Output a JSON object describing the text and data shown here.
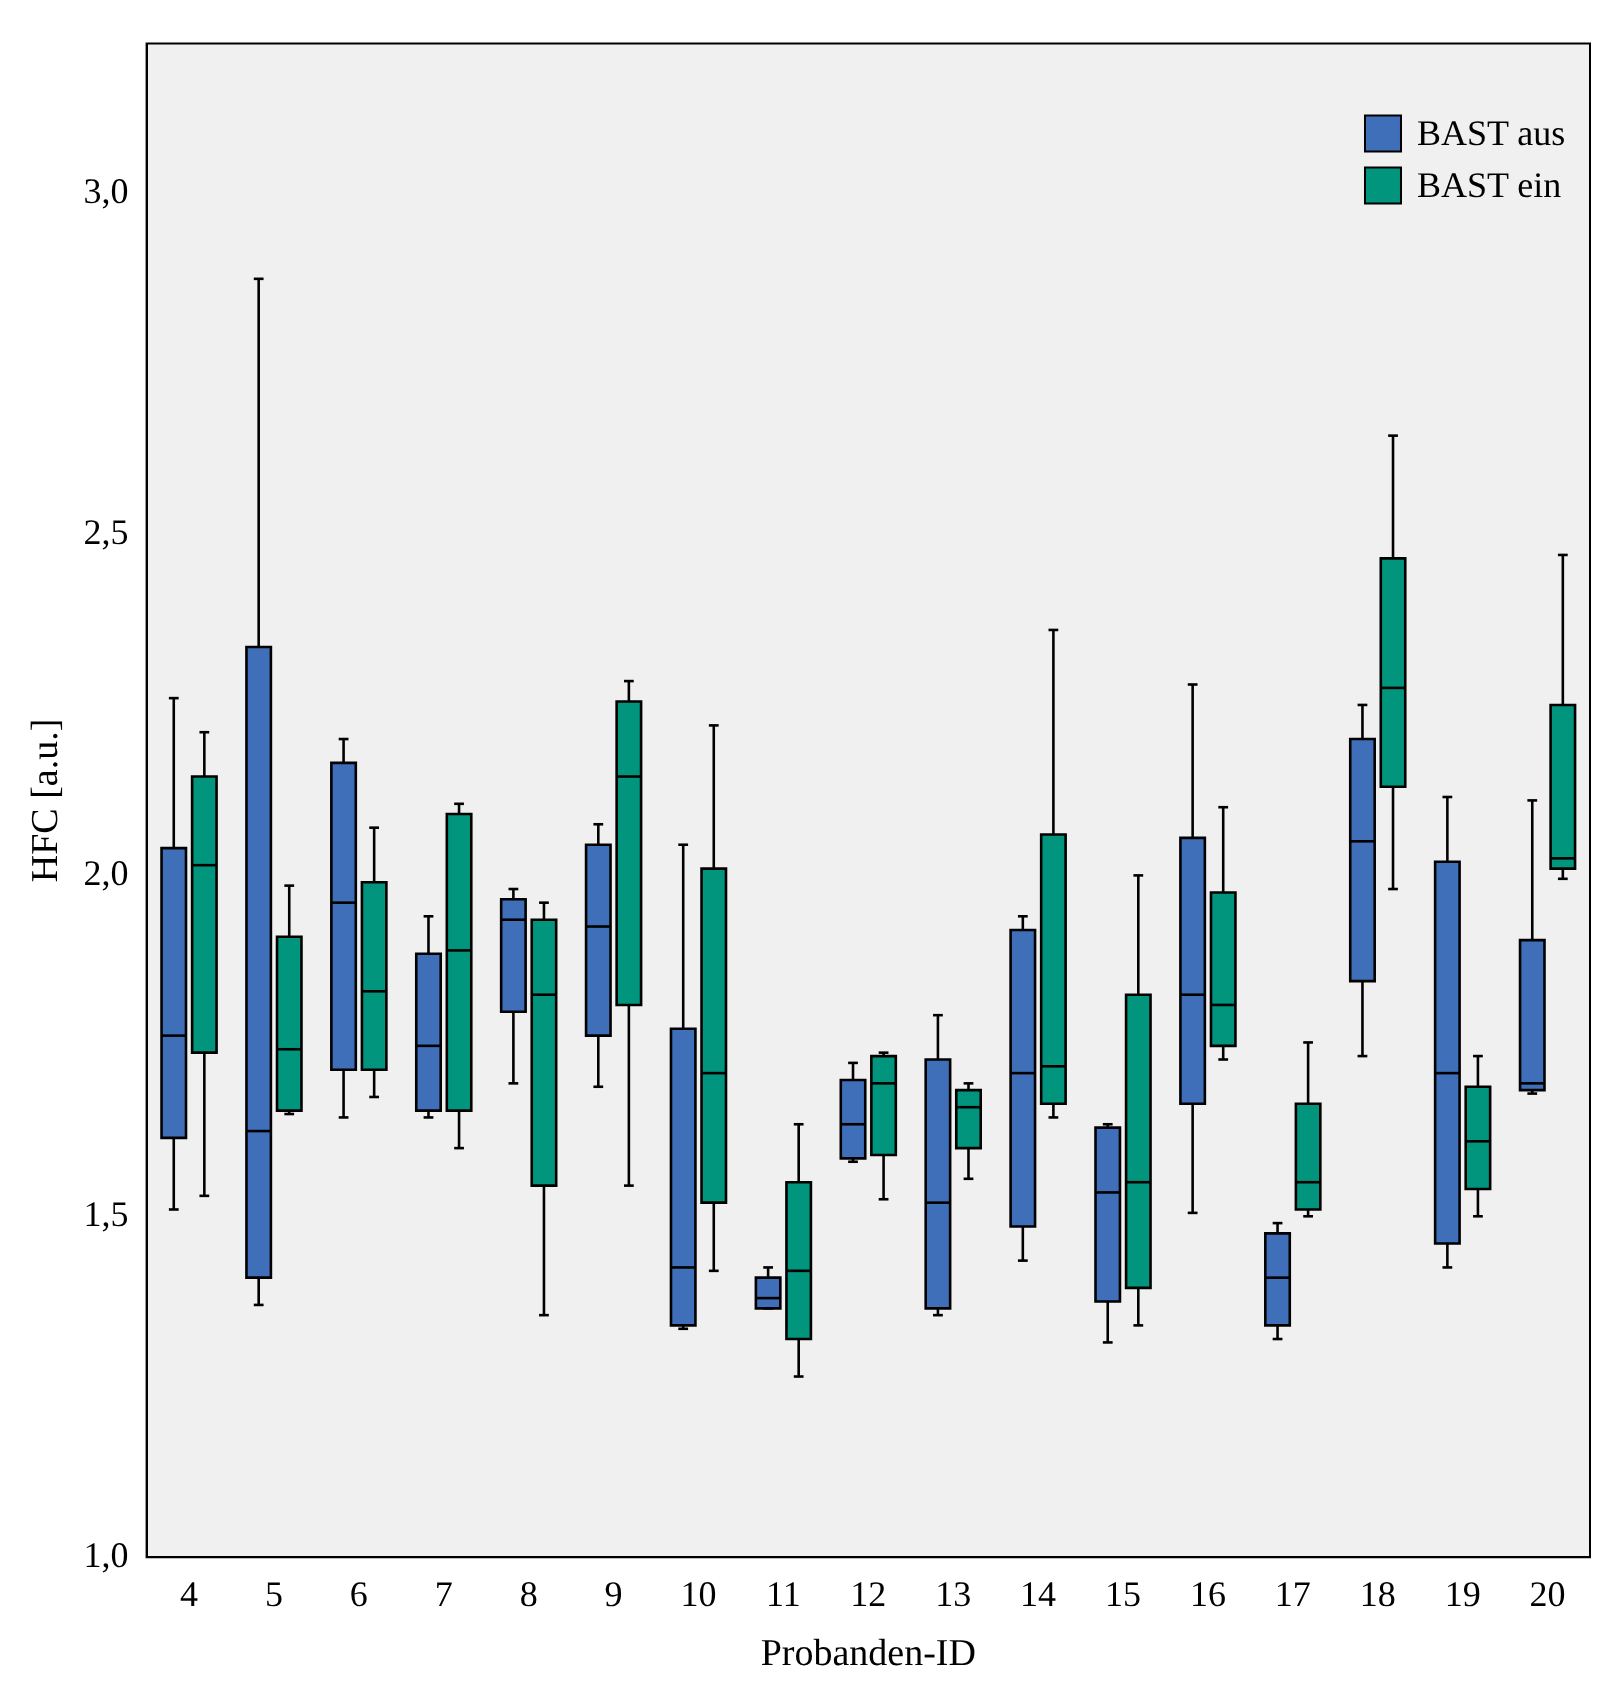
{
  "chart_data": {
    "type": "box",
    "xlabel": "Probanden-ID",
    "ylabel": "HFC [a.u.]",
    "categories": [
      "4",
      "5",
      "6",
      "7",
      "8",
      "9",
      "10",
      "11",
      "12",
      "13",
      "14",
      "15",
      "16",
      "17",
      "18",
      "19",
      "20"
    ],
    "ylim": [
      1.0,
      3.22
    ],
    "yticks": [
      {
        "value": 1.0,
        "label": "1,0"
      },
      {
        "value": 1.5,
        "label": "1,5"
      },
      {
        "value": 2.0,
        "label": "2,0"
      },
      {
        "value": 2.5,
        "label": "2,5"
      },
      {
        "value": 3.0,
        "label": "3,0"
      }
    ],
    "legend": "top right",
    "series": [
      {
        "name": "BAST aus",
        "color": "#3e6fb8",
        "boxes": [
          {
            "low": 1.51,
            "q1": 1.615,
            "median": 1.765,
            "q3": 2.04,
            "high": 2.26
          },
          {
            "low": 1.37,
            "q1": 1.41,
            "median": 1.625,
            "q3": 2.335,
            "high": 2.875
          },
          {
            "low": 1.645,
            "q1": 1.715,
            "median": 1.96,
            "q3": 2.165,
            "high": 2.2
          },
          {
            "low": 1.645,
            "q1": 1.655,
            "median": 1.75,
            "q3": 1.885,
            "high": 1.94
          },
          {
            "low": 1.695,
            "q1": 1.8,
            "median": 1.935,
            "q3": 1.965,
            "high": 1.98
          },
          {
            "low": 1.69,
            "q1": 1.765,
            "median": 1.925,
            "q3": 2.045,
            "high": 2.075
          },
          {
            "low": 1.335,
            "q1": 1.34,
            "median": 1.425,
            "q3": 1.775,
            "high": 2.045
          },
          {
            "low": 1.365,
            "q1": 1.365,
            "median": 1.38,
            "q3": 1.41,
            "high": 1.425
          },
          {
            "low": 1.58,
            "q1": 1.585,
            "median": 1.635,
            "q3": 1.7,
            "high": 1.725
          },
          {
            "low": 1.355,
            "q1": 1.365,
            "median": 1.52,
            "q3": 1.73,
            "high": 1.795
          },
          {
            "low": 1.435,
            "q1": 1.485,
            "median": 1.71,
            "q3": 1.92,
            "high": 1.94
          },
          {
            "low": 1.315,
            "q1": 1.375,
            "median": 1.535,
            "q3": 1.63,
            "high": 1.635
          },
          {
            "low": 1.505,
            "q1": 1.665,
            "median": 1.825,
            "q3": 2.055,
            "high": 2.28
          },
          {
            "low": 1.32,
            "q1": 1.34,
            "median": 1.41,
            "q3": 1.475,
            "high": 1.49
          },
          {
            "low": 1.735,
            "q1": 1.845,
            "median": 2.05,
            "q3": 2.2,
            "high": 2.25
          },
          {
            "low": 1.425,
            "q1": 1.46,
            "median": 1.71,
            "q3": 2.02,
            "high": 2.115
          },
          {
            "low": 1.68,
            "q1": 1.685,
            "median": 1.695,
            "q3": 1.905,
            "high": 2.11
          }
        ]
      },
      {
        "name": "BAST ein",
        "color": "#00957c",
        "boxes": [
          {
            "low": 1.53,
            "q1": 1.74,
            "median": 2.015,
            "q3": 2.145,
            "high": 2.21
          },
          {
            "low": 1.65,
            "q1": 1.655,
            "median": 1.745,
            "q3": 1.91,
            "high": 1.985
          },
          {
            "low": 1.675,
            "q1": 1.715,
            "median": 1.83,
            "q3": 1.99,
            "high": 2.07
          },
          {
            "low": 1.6,
            "q1": 1.655,
            "median": 1.89,
            "q3": 2.09,
            "high": 2.105
          },
          {
            "low": 1.355,
            "q1": 1.545,
            "median": 1.825,
            "q3": 1.935,
            "high": 1.96
          },
          {
            "low": 1.545,
            "q1": 1.81,
            "median": 2.145,
            "q3": 2.255,
            "high": 2.285
          },
          {
            "low": 1.42,
            "q1": 1.52,
            "median": 1.71,
            "q3": 2.01,
            "high": 2.22
          },
          {
            "low": 1.265,
            "q1": 1.32,
            "median": 1.42,
            "q3": 1.55,
            "high": 1.635
          },
          {
            "low": 1.525,
            "q1": 1.59,
            "median": 1.695,
            "q3": 1.735,
            "high": 1.74
          },
          {
            "low": 1.555,
            "q1": 1.6,
            "median": 1.66,
            "q3": 1.685,
            "high": 1.695
          },
          {
            "low": 1.645,
            "q1": 1.665,
            "median": 1.72,
            "q3": 2.06,
            "high": 2.36
          },
          {
            "low": 1.34,
            "q1": 1.395,
            "median": 1.55,
            "q3": 1.825,
            "high": 2.0
          },
          {
            "low": 1.73,
            "q1": 1.75,
            "median": 1.81,
            "q3": 1.975,
            "high": 2.1
          },
          {
            "low": 1.5,
            "q1": 1.51,
            "median": 1.55,
            "q3": 1.665,
            "high": 1.755
          },
          {
            "low": 1.98,
            "q1": 2.13,
            "median": 2.275,
            "q3": 2.465,
            "high": 2.645
          },
          {
            "low": 1.5,
            "q1": 1.54,
            "median": 1.61,
            "q3": 1.69,
            "high": 1.735
          },
          {
            "low": 1.995,
            "q1": 2.01,
            "median": 2.025,
            "q3": 2.25,
            "high": 2.47
          }
        ]
      }
    ]
  }
}
